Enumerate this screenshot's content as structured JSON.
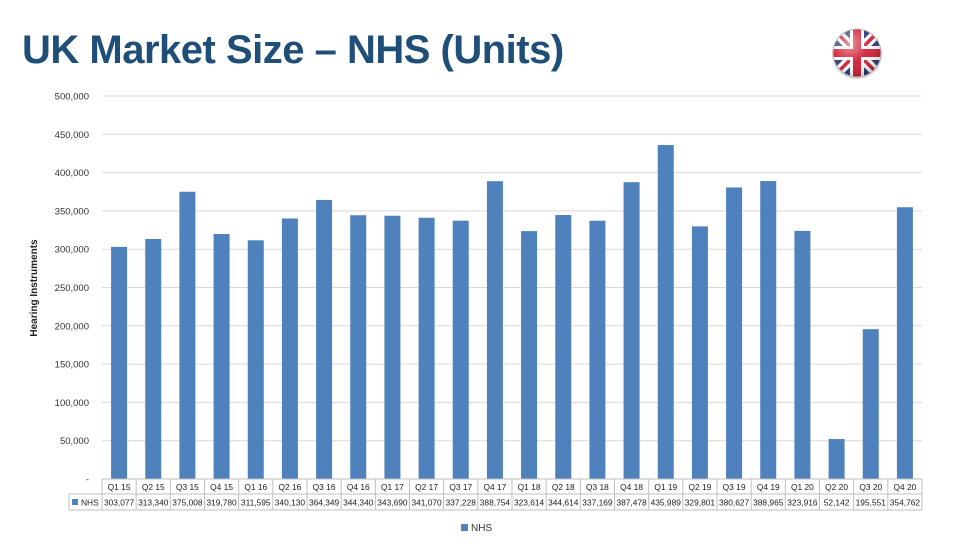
{
  "slide": {
    "title": "UK Market Size – NHS (Units)",
    "flag": "uk-flag-icon"
  },
  "chart_data": {
    "type": "bar",
    "ylabel": "Hearing Instruments",
    "ylim": [
      0,
      500000
    ],
    "yticks": [
      0,
      50000,
      100000,
      150000,
      200000,
      250000,
      300000,
      350000,
      400000,
      450000,
      500000
    ],
    "ytick_labels": [
      "-",
      "50,000",
      "100,000",
      "150,000",
      "200,000",
      "250,000",
      "300,000",
      "350,000",
      "400,000",
      "450,000",
      "500,000"
    ],
    "categories": [
      "Q1 15",
      "Q2 15",
      "Q3 15",
      "Q4 15",
      "Q1 16",
      "Q2 16",
      "Q3 16",
      "Q4 16",
      "Q1 17",
      "Q2 17",
      "Q3 17",
      "Q4 17",
      "Q1 18",
      "Q2 18",
      "Q3 18",
      "Q4 18",
      "Q1 19",
      "Q2 19",
      "Q3 19",
      "Q4 19",
      "Q1 20",
      "Q2 20",
      "Q3 20",
      "Q4 20"
    ],
    "series": [
      {
        "name": "NHS",
        "color": "#4f81bd",
        "values": [
          303077,
          313340,
          375008,
          319780,
          311595,
          340130,
          364349,
          344340,
          343690,
          341070,
          337228,
          388754,
          323614,
          344614,
          337169,
          387478,
          435989,
          329801,
          380627,
          388965,
          323916,
          52142,
          195551,
          354762
        ],
        "value_labels": [
          "303,077",
          "313,340",
          "375,008",
          "319,780",
          "311,595",
          "340,130",
          "364,349",
          "344,340",
          "343,690",
          "341,070",
          "337,228",
          "388,754",
          "323,614",
          "344,614",
          "337,169",
          "387,478",
          "435,989",
          "329,801",
          "380,627",
          "388,965",
          "323,916",
          "52,142",
          "195,551",
          "354,762"
        ]
      }
    ],
    "grid": true,
    "legend": "bottom-center",
    "data_table": true
  }
}
